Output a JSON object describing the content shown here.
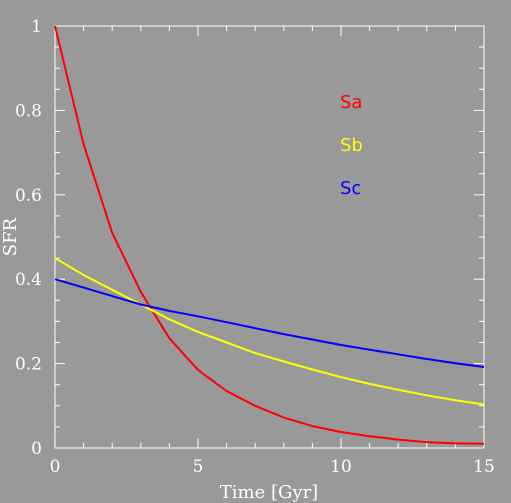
{
  "chart_data": {
    "type": "line",
    "title": "",
    "xlabel": "Time [Gyr]",
    "ylabel": "SFR",
    "xlim": [
      0,
      15
    ],
    "ylim": [
      0,
      1
    ],
    "xticks": [
      0,
      5,
      10,
      15
    ],
    "yticks": [
      0,
      0.2,
      0.4,
      0.6,
      0.8,
      1
    ],
    "xtick_labels": [
      "0",
      "5",
      "10",
      "15"
    ],
    "ytick_labels": [
      "0",
      "0.2",
      "0.4",
      "0.6",
      "0.8",
      "1"
    ],
    "grid": false,
    "legend_position": "upper-right",
    "background": "#999999",
    "axis_color": "#ffffff",
    "series": [
      {
        "name": "Sa",
        "color": "#ff0000",
        "x": [
          0,
          1,
          2,
          3,
          4,
          5,
          6,
          7,
          8,
          9,
          10,
          11,
          12,
          13,
          14,
          15
        ],
        "y": [
          1.0,
          0.72,
          0.51,
          0.37,
          0.26,
          0.185,
          0.135,
          0.1,
          0.072,
          0.052,
          0.038,
          0.028,
          0.02,
          0.014,
          0.011,
          0.01
        ]
      },
      {
        "name": "Sb",
        "color": "#ffff00",
        "x": [
          0,
          1,
          2,
          3,
          4,
          5,
          6,
          7,
          8,
          9,
          10,
          11,
          12,
          13,
          14,
          15
        ],
        "y": [
          0.45,
          0.41,
          0.375,
          0.34,
          0.305,
          0.275,
          0.25,
          0.225,
          0.205,
          0.186,
          0.168,
          0.152,
          0.138,
          0.125,
          0.113,
          0.103
        ]
      },
      {
        "name": "Sc",
        "color": "#0000ff",
        "x": [
          0,
          1,
          2,
          3,
          4,
          5,
          6,
          7,
          8,
          9,
          10,
          11,
          12,
          13,
          14,
          15
        ],
        "y": [
          0.4,
          0.38,
          0.36,
          0.34,
          0.325,
          0.312,
          0.298,
          0.284,
          0.27,
          0.257,
          0.244,
          0.233,
          0.222,
          0.211,
          0.201,
          0.192
        ]
      }
    ]
  }
}
